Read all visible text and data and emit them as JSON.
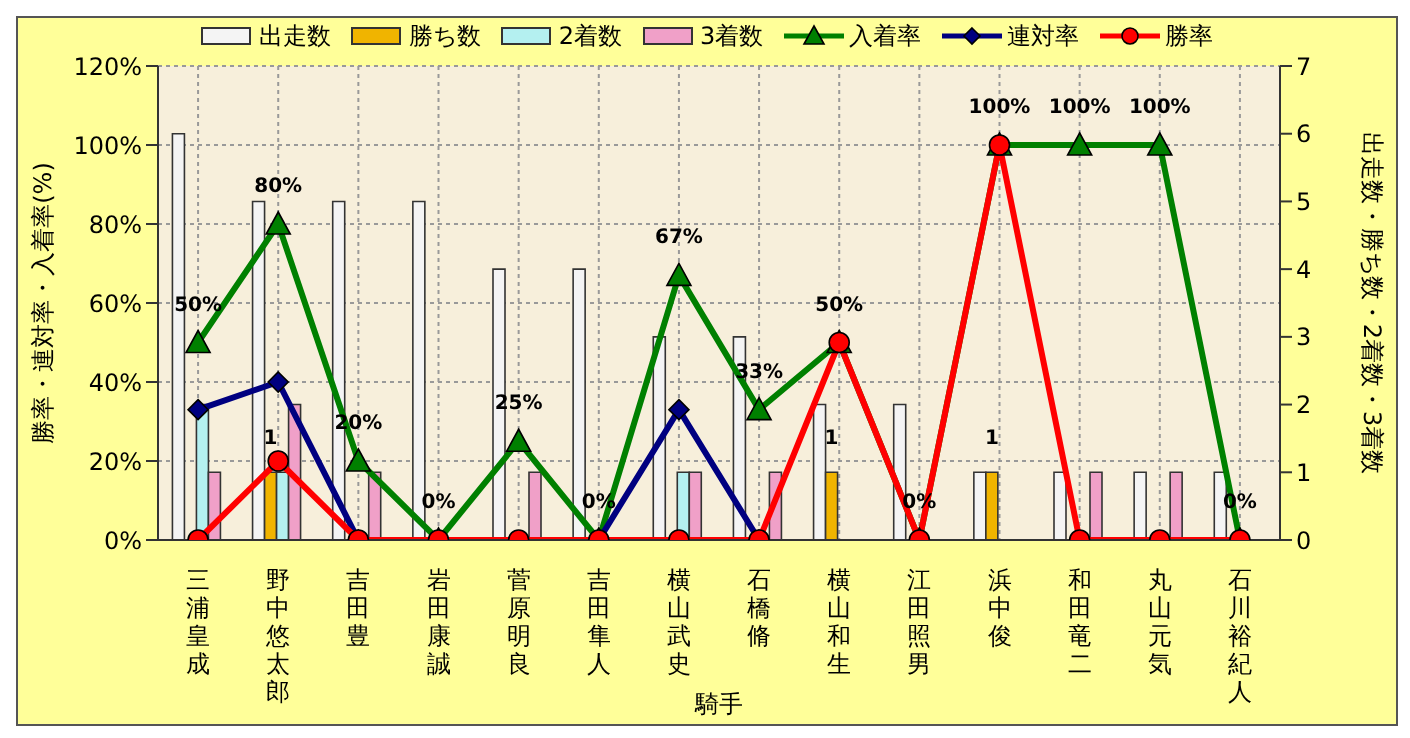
{
  "chart_data": {
    "type": "bar",
    "xlabel": "騎手",
    "ylabel": "勝率・連対率・入着率(%)",
    "y2label": "出走数・勝ち数・2着数・3着数",
    "categories": [
      "三浦皇成",
      "野中悠太郎",
      "吉田豊",
      "岩田康誠",
      "菅原明良",
      "吉田隼人",
      "横山武史",
      "石橋脩",
      "横山和生",
      "江田照男",
      "浜中俊",
      "和田竜二",
      "丸山元気",
      "石川裕紀人"
    ],
    "series": [
      {
        "name": "出走数",
        "axis": "y2",
        "color": "#f4f4f4",
        "values": [
          6,
          5,
          5,
          5,
          4,
          4,
          3,
          3,
          2,
          2,
          1,
          1,
          1,
          1
        ]
      },
      {
        "name": "勝ち数",
        "axis": "y2",
        "color": "#f0b400",
        "values": [
          0,
          1,
          0,
          0,
          0,
          0,
          0,
          0,
          1,
          0,
          1,
          0,
          0,
          0
        ],
        "value_labels": [
          null,
          "1",
          null,
          null,
          null,
          null,
          null,
          null,
          "1",
          null,
          "1",
          null,
          null,
          null
        ]
      },
      {
        "name": "2着数",
        "axis": "y2",
        "color": "#b4f0f0",
        "values": [
          2,
          1,
          0,
          0,
          0,
          0,
          1,
          0,
          0,
          0,
          0,
          0,
          0,
          0
        ]
      },
      {
        "name": "3着数",
        "axis": "y2",
        "color": "#f0a0c8",
        "values": [
          1,
          2,
          1,
          0,
          1,
          0,
          1,
          1,
          0,
          0,
          0,
          1,
          1,
          0
        ]
      },
      {
        "name": "入着率",
        "type": "line",
        "color": "#008000",
        "marker": "triangle",
        "values": [
          50,
          80,
          20,
          0,
          25,
          0,
          67,
          33,
          50,
          0,
          100,
          100,
          100,
          0
        ],
        "value_labels": [
          "50%",
          "80%",
          "20%",
          "0%",
          "25%",
          "0%",
          "67%",
          "33%",
          "50%",
          "0%",
          "100%",
          "100%",
          "100%",
          "0%"
        ]
      },
      {
        "name": "連対率",
        "type": "line",
        "color": "#000080",
        "marker": "diamond",
        "values": [
          33,
          40,
          0,
          null,
          null,
          0,
          33,
          0,
          null,
          null,
          null,
          null,
          null,
          null
        ]
      },
      {
        "name": "勝率",
        "type": "line",
        "color": "#ff0000",
        "marker": "circle",
        "values": [
          0,
          20,
          0,
          0,
          0,
          0,
          0,
          0,
          50,
          0,
          100,
          0,
          0,
          0
        ]
      }
    ],
    "ylim": [
      0,
      120
    ],
    "yticks": [
      {
        "value": 0,
        "label": "0%"
      },
      {
        "value": 20,
        "label": "20%"
      },
      {
        "value": 40,
        "label": "40%"
      },
      {
        "value": 60,
        "label": "60%"
      },
      {
        "value": 80,
        "label": "80%"
      },
      {
        "value": 100,
        "label": "100%"
      },
      {
        "value": 120,
        "label": "120%"
      }
    ],
    "y2lim": [
      0,
      7
    ],
    "y2ticks": [
      0,
      1,
      2,
      3,
      4,
      5,
      6,
      7
    ],
    "grid": true,
    "legend": "top",
    "line_style": "solid"
  }
}
